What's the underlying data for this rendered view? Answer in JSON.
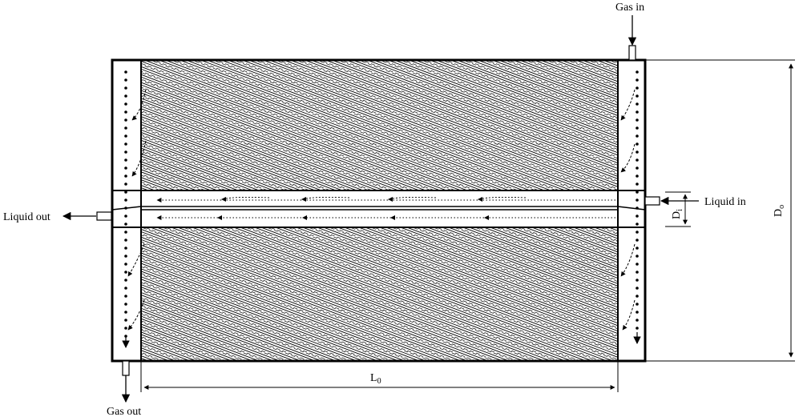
{
  "labels": {
    "gas_in": "Gas in",
    "gas_out": "Gas out",
    "liquid_in": "Liquid in",
    "liquid_out": "Liquid out",
    "outer_diameter": "D",
    "outer_diameter_sub": "o",
    "inner_diameter": "D",
    "inner_diameter_sub": "i",
    "length": "L",
    "length_sub": "0"
  }
}
